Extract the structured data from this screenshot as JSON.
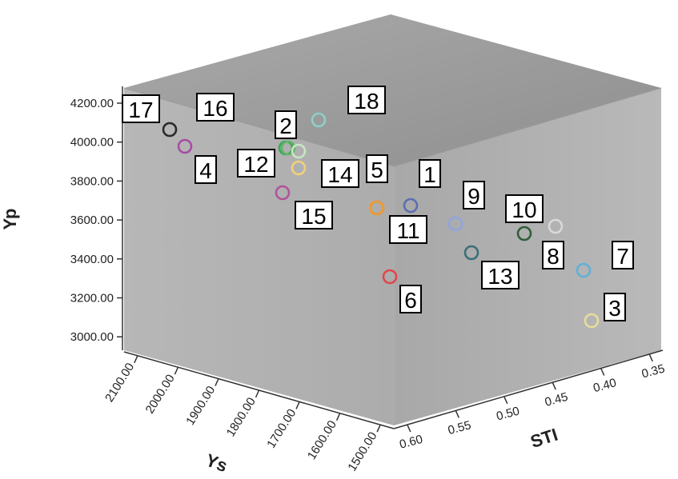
{
  "chart_data": {
    "type": "scatter",
    "x_axis": {
      "label": "STI",
      "ticks": [
        "0.60",
        "0.55",
        "0.50",
        "0.45",
        "0.40",
        "0.35"
      ]
    },
    "y_axis": {
      "label": "Yp",
      "ticks": [
        "3000.00",
        "3200.00",
        "3400.00",
        "3600.00",
        "3800.00",
        "4000.00",
        "4200.00"
      ]
    },
    "z_axis": {
      "label": "Ys",
      "ticks": [
        "2100.00",
        "2000.00",
        "1900.00",
        "1800.00",
        "1700.00",
        "1600.00",
        "1500.00"
      ]
    },
    "grid": false,
    "points": [
      {
        "label": "1",
        "yp": 3670,
        "color": "#5b6fb0"
      },
      {
        "label": "2",
        "yp": 3960,
        "color": "#3aa857"
      },
      {
        "label": "3",
        "yp": 3060,
        "color": "#e8dc9a"
      },
      {
        "label": "4",
        "yp": 3970,
        "color": "#a64ea6"
      },
      {
        "label": "5",
        "yp": 3660,
        "color": "#f0a043"
      },
      {
        "label": "6",
        "yp": 3300,
        "color": "#e0474c"
      },
      {
        "label": "7",
        "yp": 3330,
        "color": "#5fb0d8"
      },
      {
        "label": "8",
        "yp": 3540,
        "color": "#d9d9d9"
      },
      {
        "label": "9",
        "yp": 3570,
        "color": "#8fa5e0"
      },
      {
        "label": "10",
        "yp": 3530,
        "color": "#2f5f3a"
      },
      {
        "label": "11",
        "yp": 3650,
        "color": "#e89a38"
      },
      {
        "label": "12",
        "yp": 3950,
        "color": "#64b36a"
      },
      {
        "label": "13",
        "yp": 3420,
        "color": "#3b6f7a"
      },
      {
        "label": "14",
        "yp": 3860,
        "color": "#f0d27a"
      },
      {
        "label": "15",
        "yp": 3740,
        "color": "#b0559a"
      },
      {
        "label": "16",
        "yp": 3950,
        "color": "#c8e6c0"
      },
      {
        "label": "17",
        "yp": 4060,
        "color": "#2a2a2a"
      },
      {
        "label": "18",
        "yp": 4110,
        "color": "#8ecfc9"
      }
    ]
  }
}
